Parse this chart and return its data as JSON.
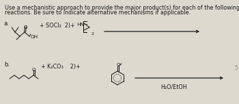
{
  "title_line1": "Use a mechanistic approach to provide the major product(s) for each of the following",
  "title_line2": "reactions. Be sure to indicate alternative mechanisms if applicable.",
  "bg_color": "#ddd9cf",
  "text_color": "#1a1a1a",
  "label_a": "a.",
  "label_b": "b.",
  "reagent_a_text": "+ SOCl₂  2)+",
  "reagent_b_text": "+ K₂CO₃    2)+",
  "solvent_b": "H₂O/EtOH",
  "font_size_title": 5.8,
  "font_size_label": 6.2,
  "font_size_reagent": 5.8,
  "font_size_chem": 5.2,
  "font_size_small": 4.5,
  "arrow_color": "#1a1a1a",
  "line_color": "#1a1a1a",
  "line_width": 0.75
}
